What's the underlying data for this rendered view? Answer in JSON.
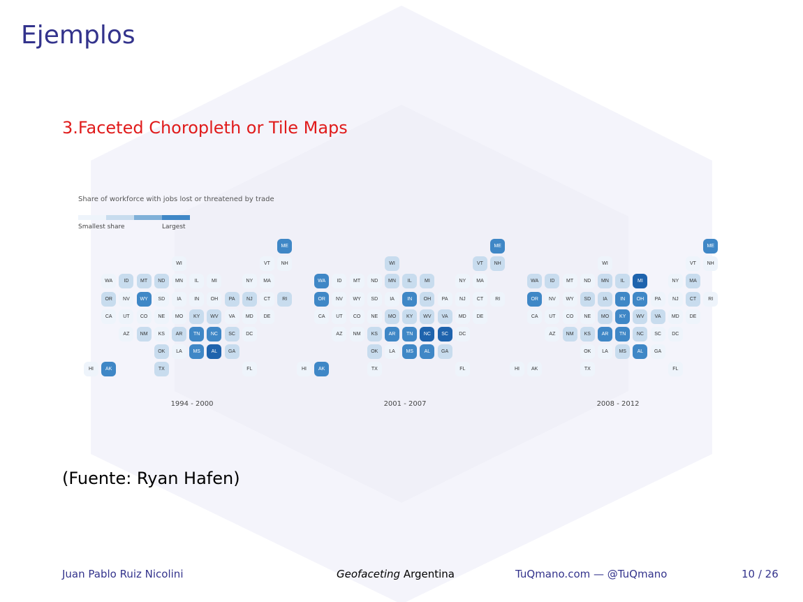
{
  "slide": {
    "title": "Ejemplos",
    "subtitle": "3.Faceted Choropleth or Tile Maps",
    "source": "(Fuente: Ryan Hafen)"
  },
  "footer": {
    "author": "Juan Pablo Ruiz Nicolini",
    "talk_italic": "Geofaceting",
    "talk_rest": " Argentina",
    "site": "TuQmano.com — @TuQmano",
    "page": "10 / 26"
  },
  "colors": {
    "levels": [
      "#eef4fb",
      "#c8dcee",
      "#7fb0d8",
      "#3f87c6",
      "#1e63ad"
    ],
    "title": "#33338c",
    "subtitle": "#e01b1b"
  },
  "chart_data": {
    "type": "heatmap",
    "title": "Share of workforce with jobs lost or threatened by trade",
    "legend": {
      "low_label": "Smallest share",
      "high_label": "Largest",
      "placement": "top-left",
      "levels": 4
    },
    "grid_layout": [
      {
        "s": "ME",
        "c": 11,
        "r": 0
      },
      {
        "s": "WI",
        "c": 5,
        "r": 1
      },
      {
        "s": "VT",
        "c": 10,
        "r": 1
      },
      {
        "s": "NH",
        "c": 11,
        "r": 1
      },
      {
        "s": "WA",
        "c": 1,
        "r": 2
      },
      {
        "s": "ID",
        "c": 2,
        "r": 2
      },
      {
        "s": "MT",
        "c": 3,
        "r": 2
      },
      {
        "s": "ND",
        "c": 4,
        "r": 2
      },
      {
        "s": "MN",
        "c": 5,
        "r": 2
      },
      {
        "s": "IL",
        "c": 6,
        "r": 2
      },
      {
        "s": "MI",
        "c": 7,
        "r": 2
      },
      {
        "s": "NY",
        "c": 9,
        "r": 2
      },
      {
        "s": "MA",
        "c": 10,
        "r": 2
      },
      {
        "s": "OR",
        "c": 1,
        "r": 3
      },
      {
        "s": "NV",
        "c": 2,
        "r": 3
      },
      {
        "s": "WY",
        "c": 3,
        "r": 3
      },
      {
        "s": "SD",
        "c": 4,
        "r": 3
      },
      {
        "s": "IA",
        "c": 5,
        "r": 3
      },
      {
        "s": "IN",
        "c": 6,
        "r": 3
      },
      {
        "s": "OH",
        "c": 7,
        "r": 3
      },
      {
        "s": "PA",
        "c": 8,
        "r": 3
      },
      {
        "s": "NJ",
        "c": 9,
        "r": 3
      },
      {
        "s": "CT",
        "c": 10,
        "r": 3
      },
      {
        "s": "RI",
        "c": 11,
        "r": 3
      },
      {
        "s": "CA",
        "c": 1,
        "r": 4
      },
      {
        "s": "UT",
        "c": 2,
        "r": 4
      },
      {
        "s": "CO",
        "c": 3,
        "r": 4
      },
      {
        "s": "NE",
        "c": 4,
        "r": 4
      },
      {
        "s": "MO",
        "c": 5,
        "r": 4
      },
      {
        "s": "KY",
        "c": 6,
        "r": 4
      },
      {
        "s": "WV",
        "c": 7,
        "r": 4
      },
      {
        "s": "VA",
        "c": 8,
        "r": 4
      },
      {
        "s": "MD",
        "c": 9,
        "r": 4
      },
      {
        "s": "DE",
        "c": 10,
        "r": 4
      },
      {
        "s": "AZ",
        "c": 2,
        "r": 5
      },
      {
        "s": "NM",
        "c": 3,
        "r": 5
      },
      {
        "s": "KS",
        "c": 4,
        "r": 5
      },
      {
        "s": "AR",
        "c": 5,
        "r": 5
      },
      {
        "s": "TN",
        "c": 6,
        "r": 5
      },
      {
        "s": "NC",
        "c": 7,
        "r": 5
      },
      {
        "s": "SC",
        "c": 8,
        "r": 5
      },
      {
        "s": "DC",
        "c": 9,
        "r": 5
      },
      {
        "s": "OK",
        "c": 4,
        "r": 6
      },
      {
        "s": "LA",
        "c": 5,
        "r": 6
      },
      {
        "s": "MS",
        "c": 6,
        "r": 6
      },
      {
        "s": "AL",
        "c": 7,
        "r": 6
      },
      {
        "s": "GA",
        "c": 8,
        "r": 6
      },
      {
        "s": "HI",
        "c": 0,
        "r": 7
      },
      {
        "s": "AK",
        "c": 1,
        "r": 7
      },
      {
        "s": "TX",
        "c": 4,
        "r": 7
      },
      {
        "s": "FL",
        "c": 9,
        "r": 7
      }
    ],
    "panels": [
      {
        "label": "1994 - 2000",
        "levels": {
          "ME": 3,
          "WI": 0,
          "VT": 0,
          "NH": 0,
          "WA": 0,
          "ID": 1,
          "MT": 1,
          "ND": 1,
          "MN": 0,
          "IL": 0,
          "MI": 0,
          "NY": 0,
          "MA": 0,
          "OR": 1,
          "NV": 0,
          "WY": 3,
          "SD": 0,
          "IA": 0,
          "IN": 0,
          "OH": 0,
          "PA": 1,
          "NJ": 1,
          "CT": 0,
          "RI": 1,
          "CA": 0,
          "UT": 0,
          "CO": 0,
          "NE": 0,
          "MO": 0,
          "KY": 1,
          "WV": 1,
          "VA": 0,
          "MD": 0,
          "DE": 0,
          "AZ": 0,
          "NM": 1,
          "KS": 0,
          "AR": 1,
          "TN": 3,
          "NC": 3,
          "SC": 1,
          "DC": 0,
          "OK": 1,
          "LA": 0,
          "MS": 3,
          "AL": 4,
          "GA": 1,
          "HI": 0,
          "AK": 3,
          "TX": 1,
          "FL": 0
        }
      },
      {
        "label": "2001 - 2007",
        "levels": {
          "ME": 3,
          "WI": 1,
          "VT": 1,
          "NH": 1,
          "WA": 3,
          "ID": 0,
          "MT": 0,
          "ND": 0,
          "MN": 1,
          "IL": 1,
          "MI": 1,
          "NY": 0,
          "MA": 0,
          "OR": 3,
          "NV": 0,
          "WY": 0,
          "SD": 0,
          "IA": 0,
          "IN": 3,
          "OH": 1,
          "PA": 0,
          "NJ": 0,
          "CT": 0,
          "RI": 0,
          "CA": 0,
          "UT": 0,
          "CO": 0,
          "NE": 0,
          "MO": 1,
          "KY": 1,
          "WV": 1,
          "VA": 1,
          "MD": 0,
          "DE": 0,
          "AZ": 0,
          "NM": 0,
          "KS": 1,
          "AR": 3,
          "TN": 3,
          "NC": 4,
          "SC": 4,
          "DC": 0,
          "OK": 1,
          "LA": 0,
          "MS": 3,
          "AL": 3,
          "GA": 1,
          "HI": 0,
          "AK": 3,
          "TX": 0,
          "FL": 0
        }
      },
      {
        "label": "2008 - 2012",
        "levels": {
          "ME": 3,
          "WI": 0,
          "VT": 0,
          "NH": 0,
          "WA": 1,
          "ID": 1,
          "MT": 0,
          "ND": 0,
          "MN": 1,
          "IL": 1,
          "MI": 4,
          "NY": 0,
          "MA": 1,
          "OR": 3,
          "NV": 0,
          "WY": 0,
          "SD": 1,
          "IA": 1,
          "IN": 3,
          "OH": 3,
          "PA": 0,
          "NJ": 0,
          "CT": 1,
          "RI": 0,
          "CA": 0,
          "UT": 0,
          "CO": 0,
          "NE": 0,
          "MO": 1,
          "KY": 3,
          "WV": 1,
          "VA": 1,
          "MD": 0,
          "DE": 0,
          "AZ": 0,
          "NM": 1,
          "KS": 1,
          "AR": 3,
          "TN": 3,
          "NC": 1,
          "SC": 0,
          "DC": 0,
          "OK": 0,
          "LA": 0,
          "MS": 1,
          "AL": 3,
          "GA": 0,
          "HI": 0,
          "AK": 0,
          "TX": 0,
          "FL": 0
        }
      }
    ]
  }
}
